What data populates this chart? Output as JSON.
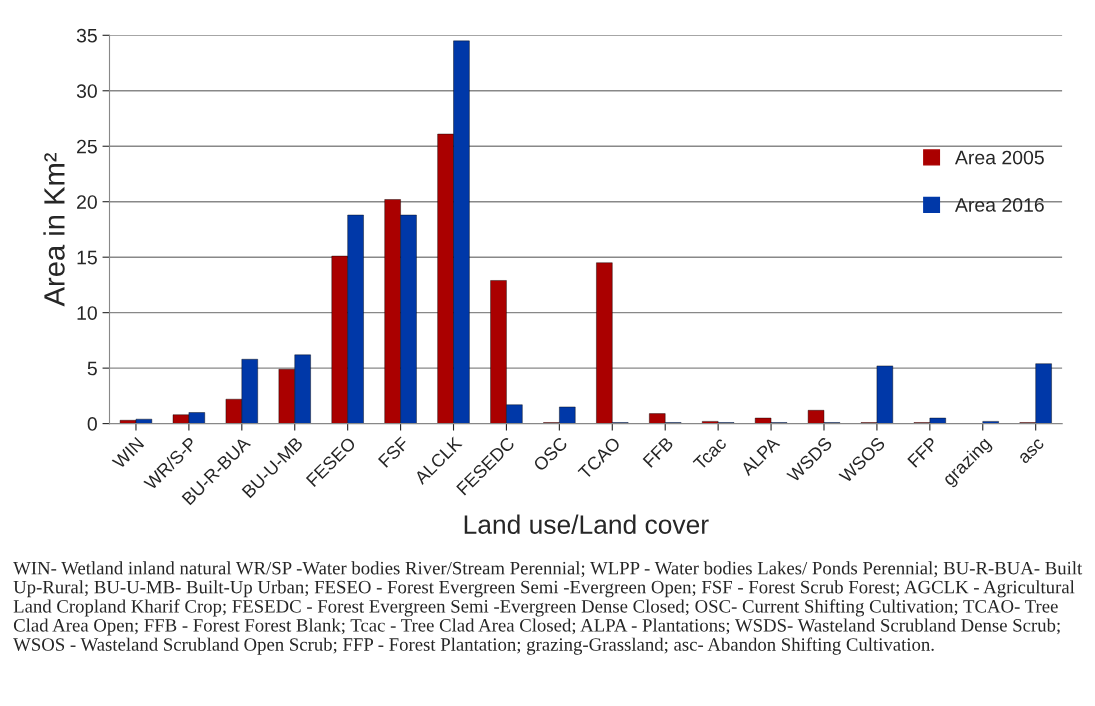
{
  "chart_data": {
    "type": "bar",
    "xlabel": "Land use/Land cover",
    "ylabel": "Area in Km²",
    "categories": [
      "WIN",
      "WR/S-P",
      "BU-R-BUA",
      "BU-U-MB",
      "FESEO",
      "FSF",
      "ALCLK",
      "FESEDC",
      "OSC",
      "TCAO",
      "FFB",
      "Tcac",
      "ALPA",
      "WSDS",
      "WSOS",
      "FFP",
      "grazing",
      "asc"
    ],
    "series": [
      {
        "name": "Area 2005",
        "color": "#aa0000",
        "values": [
          0.3,
          0.8,
          2.2,
          4.9,
          15.1,
          20.2,
          26.1,
          12.9,
          0.1,
          14.5,
          0.9,
          0.2,
          0.5,
          1.2,
          0.1,
          0.1,
          null,
          0.1
        ]
      },
      {
        "name": "Area 2016",
        "color": "#0038a8",
        "values": [
          0.4,
          1.0,
          5.8,
          6.2,
          18.8,
          18.8,
          34.5,
          1.7,
          1.5,
          0.1,
          0.1,
          0.1,
          0.1,
          0.1,
          5.2,
          0.5,
          0.2,
          5.4
        ]
      }
    ],
    "ylim": [
      0,
      35
    ],
    "yticks": [
      0,
      5,
      10,
      15,
      20,
      25,
      30,
      35
    ],
    "grid": "y",
    "legend": "right",
    "annotations": [
      "WIN- Wetland inland natural WR/SP -Water bodies River/Stream Perennial; WLPP - Water bodies Lakes/ Ponds Perennial; BU-R-BUA- Built Up-Rural; BU-U-MB- Built-Up Urban; FESEO - Forest Evergreen Semi -Evergreen Open; FSF - Forest Scrub Forest; AGCLK - Agricultural Land Cropland Kharif Crop; FESEDC - Forest Evergreen Semi -Evergreen Dense Closed; OSC- Current Shifting Cultivation; TCAO- Tree Clad Area Open; FFB - Forest Forest Blank; Tcac - Tree Clad Area Closed; ALPA - Plantations; WSDS- Wasteland Scrubland Dense Scrub; WSOS - Wasteland Scrubland Open Scrub; FFP - Forest Plantation; grazing-Grassland; asc- Abandon Shifting Cultivation."
    ]
  }
}
